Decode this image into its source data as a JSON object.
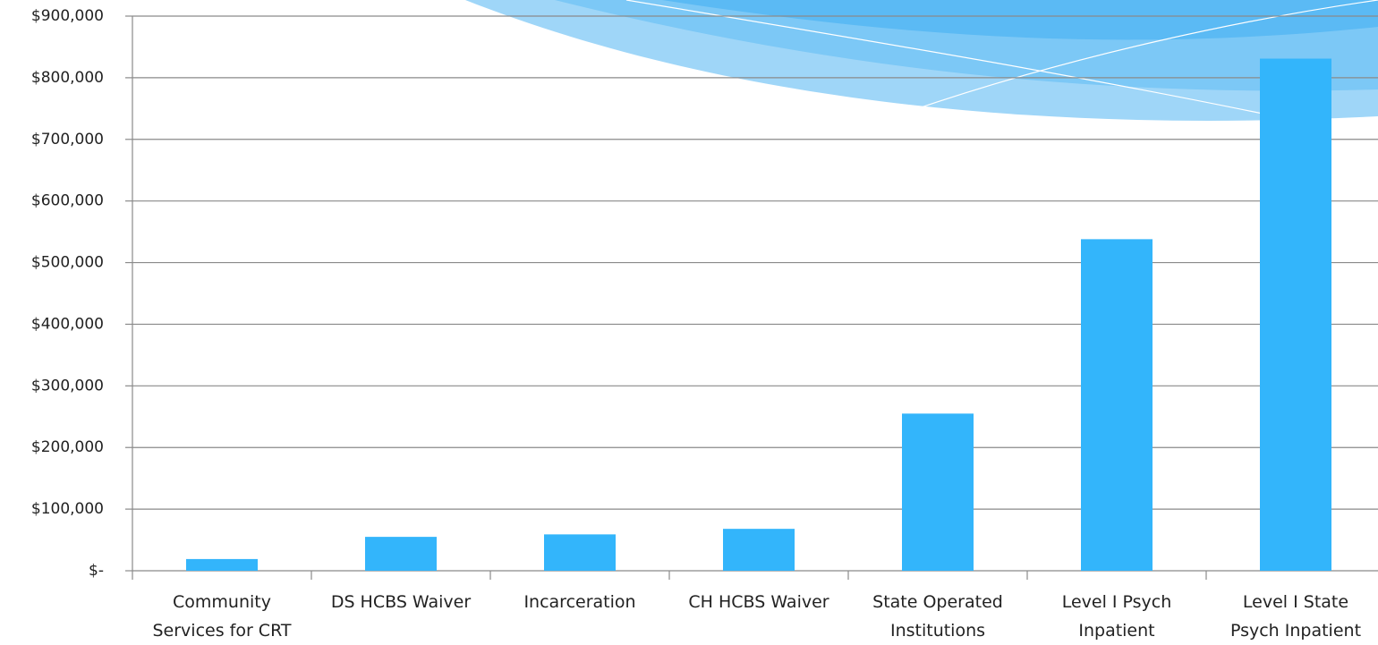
{
  "chart_data": {
    "type": "bar",
    "categories": [
      "Community Services for CRT",
      "DS HCBS Waiver",
      "Incarceration",
      "CH HCBS Waiver",
      "State Operated Institutions",
      "Level I Psych Inpatient",
      "Level I State Psych Inpatient"
    ],
    "values": [
      19000,
      55000,
      59000,
      68000,
      255000,
      538000,
      831000
    ],
    "color": "#33b5fb",
    "ylim": [
      0,
      900000
    ],
    "yticks": [
      {
        "value": 0,
        "label": "$-"
      },
      {
        "value": 100000,
        "label": "$100,000"
      },
      {
        "value": 200000,
        "label": "$200,000"
      },
      {
        "value": 300000,
        "label": "$300,000"
      },
      {
        "value": 400000,
        "label": "$400,000"
      },
      {
        "value": 500000,
        "label": "$500,000"
      },
      {
        "value": 600000,
        "label": "$600,000"
      },
      {
        "value": 700000,
        "label": "$700,000"
      },
      {
        "value": 800000,
        "label": "$800,000"
      },
      {
        "value": 900000,
        "label": "$900,000"
      }
    ],
    "grid": true
  }
}
